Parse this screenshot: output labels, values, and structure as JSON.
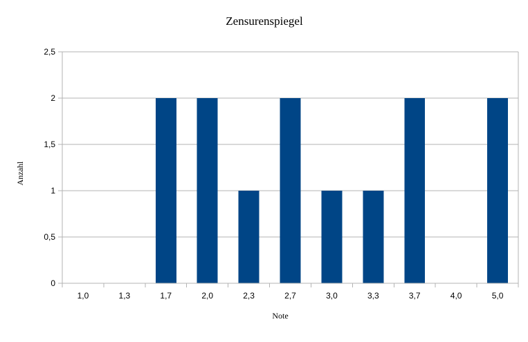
{
  "chart_data": {
    "type": "bar",
    "title": "Zensurenspiegel",
    "xlabel": "Note",
    "ylabel": "Anzahl",
    "categories": [
      "1,0",
      "1,3",
      "1,7",
      "2,0",
      "2,3",
      "2,7",
      "3,0",
      "3,3",
      "3,7",
      "4,0",
      "5,0"
    ],
    "values": [
      0,
      0,
      2,
      2,
      1,
      2,
      1,
      1,
      2,
      0,
      2
    ],
    "ylim": [
      0,
      2.5
    ],
    "yticks": [
      0,
      0.5,
      1,
      1.5,
      2,
      2.5
    ],
    "ytick_labels": [
      "0",
      "0,5",
      "1",
      "1,5",
      "2",
      "2,5"
    ],
    "grid": true,
    "legend": "none",
    "colors": {
      "bar": "#004586",
      "grid": "#b3b3b3",
      "axis": "#b3b3b3"
    }
  }
}
